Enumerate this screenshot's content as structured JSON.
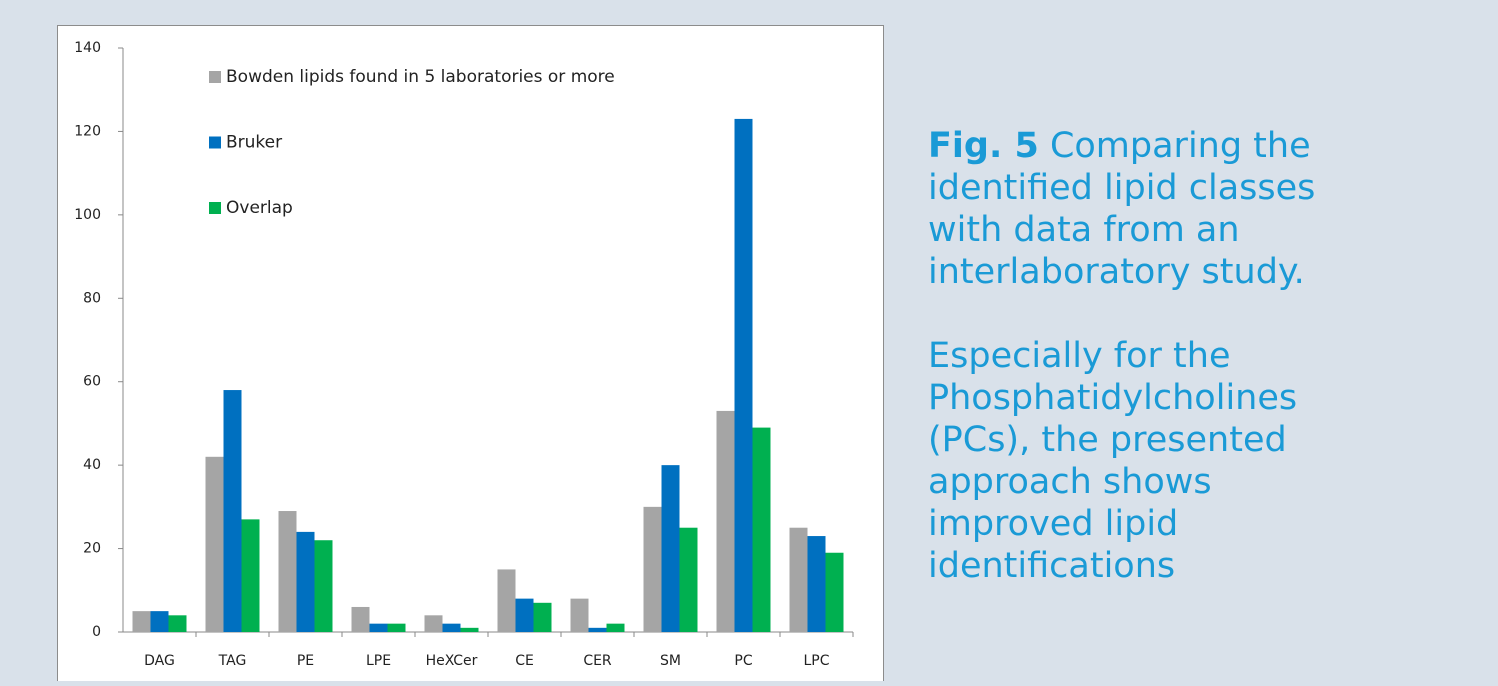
{
  "chart_data": {
    "type": "bar",
    "categories": [
      "DAG",
      "TAG",
      "PE",
      "LPE",
      "HeXCer",
      "CE",
      "CER",
      "SM",
      "PC",
      "LPC"
    ],
    "series": [
      {
        "name": "Bowden lipids found in 5 laboratories or more",
        "color": "#a5a5a5",
        "values": [
          5,
          42,
          29,
          6,
          4,
          15,
          8,
          30,
          53,
          25
        ]
      },
      {
        "name": "Bruker",
        "color": "#0070c0",
        "values": [
          5,
          58,
          24,
          2,
          2,
          8,
          1,
          40,
          123,
          23
        ]
      },
      {
        "name": "Overlap",
        "color": "#00b050",
        "values": [
          4,
          27,
          22,
          2,
          1,
          7,
          2,
          25,
          49,
          19
        ]
      }
    ],
    "ylim": [
      0,
      140
    ],
    "yticks": [
      0,
      20,
      40,
      60,
      80,
      100,
      120,
      140
    ],
    "grid": false
  },
  "caption": {
    "label": "Fig. 5",
    "lines": [
      "Comparing the",
      "identified lipid classes",
      "with data from an",
      "interlaboratory study."
    ],
    "note_lines": [
      "Especially for the",
      "Phosphatidylcholines",
      "(PCs), the presented",
      "approach shows",
      "improved lipid",
      "identifications"
    ]
  }
}
